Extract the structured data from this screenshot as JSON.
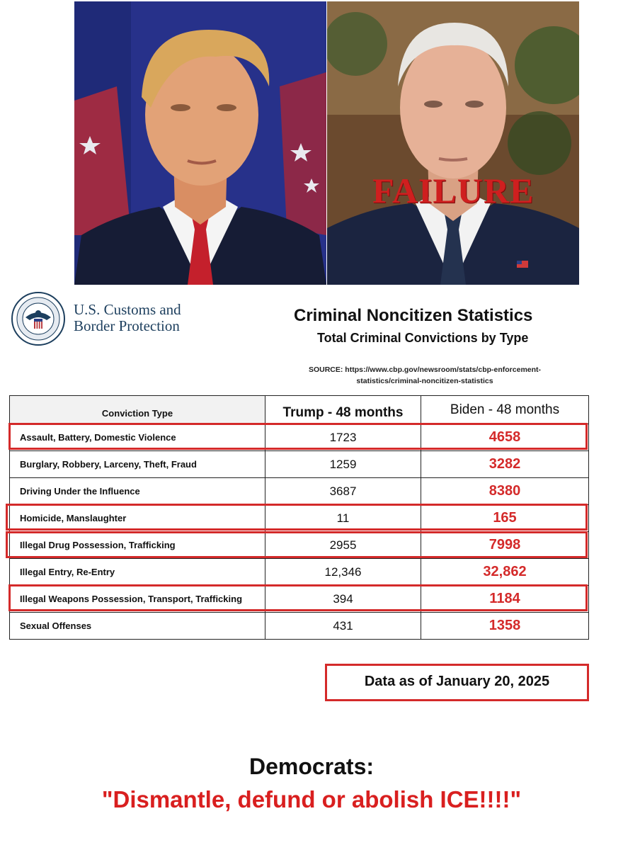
{
  "overlay": {
    "failure_label": "FAILURE"
  },
  "agency": {
    "name_line1": "U.S. Customs and",
    "name_line2": "Border Protection"
  },
  "titles": {
    "main": "Criminal Noncitizen Statistics",
    "sub": "Total Criminal Convictions by Type",
    "source_line1": "SOURCE: https://www.cbp.gov/newsroom/stats/cbp-enforcement-",
    "source_line2": "statistics/criminal-noncitizen-statistics"
  },
  "table": {
    "headers": [
      "Conviction Type",
      "Trump - 48 months",
      "Biden - 48 months"
    ],
    "rows": [
      {
        "type": "Assault, Battery, Domestic Violence",
        "trump": "1723",
        "biden": "4658"
      },
      {
        "type": "Burglary, Robbery, Larceny, Theft, Fraud",
        "trump": "1259",
        "biden": "3282"
      },
      {
        "type": "Driving Under the Influence",
        "trump": "3687",
        "biden": "8380"
      },
      {
        "type": "Homicide, Manslaughter",
        "trump": "11",
        "biden": "165"
      },
      {
        "type": "Illegal Drug Possession, Trafficking",
        "trump": "2955",
        "biden": "7998"
      },
      {
        "type": "Illegal Entry, Re-Entry",
        "trump": "12,346",
        "biden": "32,862"
      },
      {
        "type": "Illegal Weapons Possession, Transport, Trafficking",
        "trump": "394",
        "biden": "1184"
      },
      {
        "type": "Sexual Offenses",
        "trump": "431",
        "biden": "1358"
      }
    ]
  },
  "date_note": "Data as of January 20, 2025",
  "footer": {
    "title": "Democrats:",
    "quote": "\"Dismantle, defund or abolish ICE!!!!\""
  },
  "colors": {
    "accent_red": "#d42a2a",
    "biden_value_red": "#d42a2a",
    "agency_blue": "#1d3f5e"
  }
}
